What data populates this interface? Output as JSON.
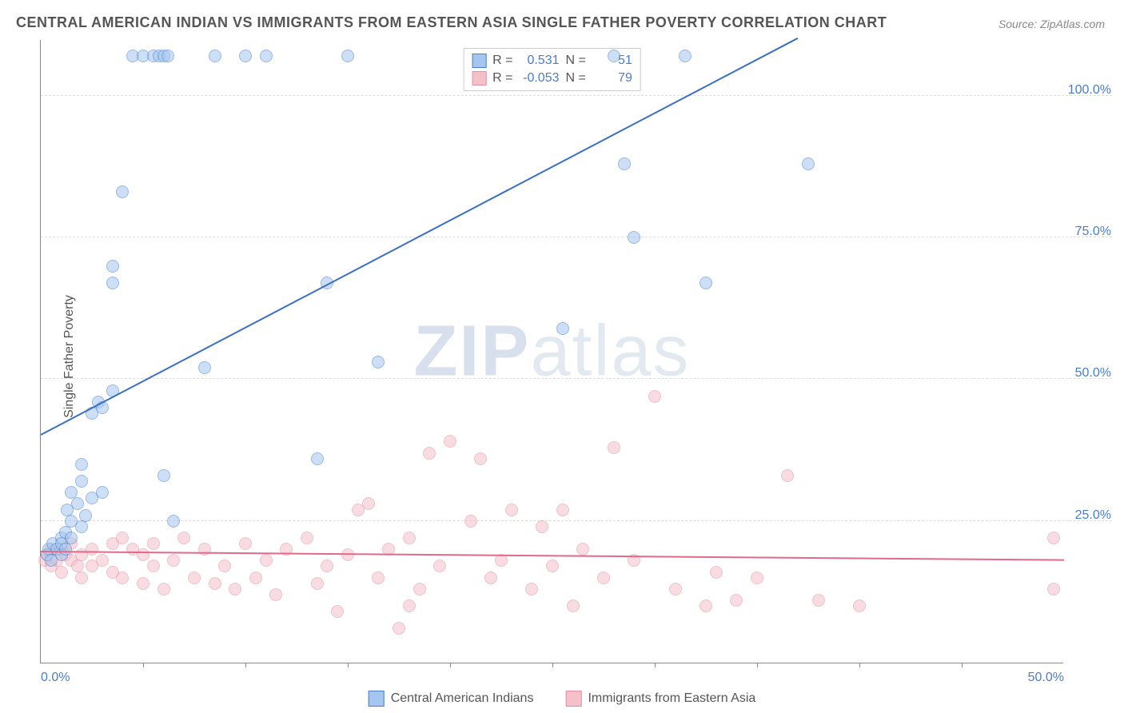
{
  "title": "CENTRAL AMERICAN INDIAN VS IMMIGRANTS FROM EASTERN ASIA SINGLE FATHER POVERTY CORRELATION CHART",
  "source": "Source: ZipAtlas.com",
  "ylabel": "Single Father Poverty",
  "watermark_bold": "ZIP",
  "watermark_light": "atlas",
  "chart": {
    "type": "scatter",
    "xlim": [
      0,
      50
    ],
    "ylim": [
      0,
      110
    ],
    "xtick_labels": [
      "0.0%",
      "50.0%"
    ],
    "xtick_marks": [
      5,
      10,
      15,
      20,
      25,
      30,
      35,
      40,
      45
    ],
    "ytick_labels": [
      {
        "y": 25,
        "label": "25.0%"
      },
      {
        "y": 50,
        "label": "50.0%"
      },
      {
        "y": 75,
        "label": "75.0%"
      },
      {
        "y": 100,
        "label": "100.0%"
      }
    ],
    "background_color": "#ffffff",
    "grid_color": "#dddddd",
    "point_radius": 8,
    "point_opacity": 0.55
  },
  "series_a": {
    "name": "Central American Indians",
    "fill_color": "#a4c6f0",
    "stroke_color": "#4a7ec9",
    "line_color": "#3a6fc4",
    "r_value": "0.531",
    "n_value": "51",
    "trend": {
      "x1": 0,
      "y1": 40,
      "x2": 37,
      "y2": 110
    },
    "points": [
      [
        0.3,
        19
      ],
      [
        0.4,
        20
      ],
      [
        0.5,
        18
      ],
      [
        0.6,
        21
      ],
      [
        0.8,
        20
      ],
      [
        1.0,
        22
      ],
      [
        1.0,
        19
      ],
      [
        1.2,
        23
      ],
      [
        1.3,
        27
      ],
      [
        1.5,
        25
      ],
      [
        1.5,
        30
      ],
      [
        1.8,
        28
      ],
      [
        2.0,
        32
      ],
      [
        2.0,
        35
      ],
      [
        2.5,
        29
      ],
      [
        2.5,
        44
      ],
      [
        2.8,
        46
      ],
      [
        3.0,
        45
      ],
      [
        3.5,
        48
      ],
      [
        3.5,
        70
      ],
      [
        3.5,
        67
      ],
      [
        4.0,
        83
      ],
      [
        4.5,
        107
      ],
      [
        5.0,
        107
      ],
      [
        5.5,
        107
      ],
      [
        5.8,
        107
      ],
      [
        6.0,
        107
      ],
      [
        6.2,
        107
      ],
      [
        6.0,
        33
      ],
      [
        6.5,
        25
      ],
      [
        8.0,
        52
      ],
      [
        8.5,
        107
      ],
      [
        10.0,
        107
      ],
      [
        11.0,
        107
      ],
      [
        13.5,
        36
      ],
      [
        14.0,
        67
      ],
      [
        15.0,
        107
      ],
      [
        16.5,
        53
      ],
      [
        25.5,
        59
      ],
      [
        28.0,
        107
      ],
      [
        28.5,
        88
      ],
      [
        29.0,
        75
      ],
      [
        31.5,
        107
      ],
      [
        32.5,
        67
      ],
      [
        37.5,
        88
      ],
      [
        2.0,
        24
      ],
      [
        1.0,
        21
      ],
      [
        1.2,
        20
      ],
      [
        1.5,
        22
      ],
      [
        2.2,
        26
      ],
      [
        3.0,
        30
      ]
    ]
  },
  "series_b": {
    "name": "Immigrants from Eastern Asia",
    "fill_color": "#f5c0ca",
    "stroke_color": "#e38fa3",
    "line_color": "#e06a8a",
    "r_value": "-0.053",
    "n_value": "79",
    "trend": {
      "x1": 0,
      "y1": 19.5,
      "x2": 50,
      "y2": 18
    },
    "points": [
      [
        0.2,
        18
      ],
      [
        0.3,
        19
      ],
      [
        0.5,
        20
      ],
      [
        0.5,
        17
      ],
      [
        0.8,
        18
      ],
      [
        1.0,
        20
      ],
      [
        1.0,
        16
      ],
      [
        1.2,
        19
      ],
      [
        1.5,
        18
      ],
      [
        1.5,
        21
      ],
      [
        1.8,
        17
      ],
      [
        2.0,
        19
      ],
      [
        2.0,
        15
      ],
      [
        2.5,
        20
      ],
      [
        2.5,
        17
      ],
      [
        3.0,
        18
      ],
      [
        3.5,
        16
      ],
      [
        3.5,
        21
      ],
      [
        4.0,
        15
      ],
      [
        4.0,
        22
      ],
      [
        4.5,
        20
      ],
      [
        5.0,
        14
      ],
      [
        5.0,
        19
      ],
      [
        5.5,
        21
      ],
      [
        5.5,
        17
      ],
      [
        6.0,
        13
      ],
      [
        6.5,
        18
      ],
      [
        7.0,
        22
      ],
      [
        7.5,
        15
      ],
      [
        8.0,
        20
      ],
      [
        8.5,
        14
      ],
      [
        9.0,
        17
      ],
      [
        9.5,
        13
      ],
      [
        10.0,
        21
      ],
      [
        10.5,
        15
      ],
      [
        11.0,
        18
      ],
      [
        11.5,
        12
      ],
      [
        12.0,
        20
      ],
      [
        13.0,
        22
      ],
      [
        13.5,
        14
      ],
      [
        14.0,
        17
      ],
      [
        14.5,
        9
      ],
      [
        15.0,
        19
      ],
      [
        15.5,
        27
      ],
      [
        16.0,
        28
      ],
      [
        16.5,
        15
      ],
      [
        17.0,
        20
      ],
      [
        17.5,
        6
      ],
      [
        18.0,
        22
      ],
      [
        18.5,
        13
      ],
      [
        19.0,
        37
      ],
      [
        19.5,
        17
      ],
      [
        20.0,
        39
      ],
      [
        21.0,
        25
      ],
      [
        21.5,
        36
      ],
      [
        22.0,
        15
      ],
      [
        22.5,
        18
      ],
      [
        23.0,
        27
      ],
      [
        24.0,
        13
      ],
      [
        24.5,
        24
      ],
      [
        25.0,
        17
      ],
      [
        25.5,
        27
      ],
      [
        26.0,
        10
      ],
      [
        26.5,
        20
      ],
      [
        27.5,
        15
      ],
      [
        28.0,
        38
      ],
      [
        29.0,
        18
      ],
      [
        30.0,
        47
      ],
      [
        31.0,
        13
      ],
      [
        32.5,
        10
      ],
      [
        33.0,
        16
      ],
      [
        34.0,
        11
      ],
      [
        35.0,
        15
      ],
      [
        36.5,
        33
      ],
      [
        38.0,
        11
      ],
      [
        40.0,
        10
      ],
      [
        49.5,
        22
      ],
      [
        49.5,
        13
      ],
      [
        18.0,
        10
      ]
    ]
  },
  "stat_legend": {
    "r_label": "R =",
    "n_label": "N ="
  }
}
